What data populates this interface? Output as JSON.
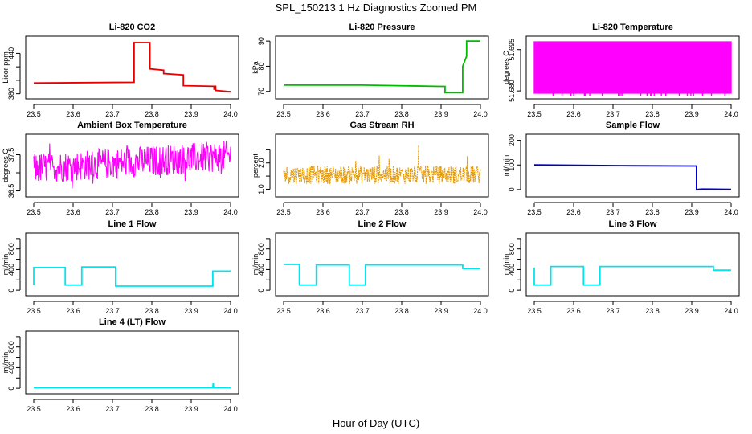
{
  "main_title": "SPL_150213  1 Hz Diagnostics Zoomed PM",
  "xlabel": "Hour of Day (UTC)",
  "chart_data": [
    {
      "type": "line",
      "title": "Li-820 CO2",
      "ylabel": "Licor ppm",
      "color": "#e60000",
      "xlim": [
        23.5,
        24.0
      ],
      "ylim": [
        376,
        462
      ],
      "yticks": [
        380,
        400,
        420,
        440
      ],
      "ytick_labels": [
        "380",
        "",
        "",
        "440"
      ],
      "x": [
        23.5,
        23.755,
        23.755,
        23.795,
        23.795,
        23.83,
        23.83,
        23.88,
        23.88,
        23.958,
        23.958,
        23.962,
        23.962,
        24.0
      ],
      "y": [
        396,
        397,
        456,
        456,
        417,
        415,
        410,
        408,
        392,
        391,
        386,
        392,
        385,
        383
      ]
    },
    {
      "type": "line",
      "title": "Li-820 Pressure",
      "ylabel": "kPa",
      "color": "#00bb00",
      "xlim": [
        23.5,
        24.0
      ],
      "ylim": [
        68,
        91
      ],
      "yticks": [
        70,
        80,
        90
      ],
      "ytick_labels": [
        "70",
        "80",
        "90"
      ],
      "x": [
        23.5,
        23.7,
        23.9,
        23.91,
        23.91,
        23.955,
        23.955,
        23.965,
        23.965,
        24.0
      ],
      "y": [
        72.5,
        72.5,
        72.0,
        72.0,
        69.5,
        69.5,
        80,
        84,
        90,
        90
      ]
    },
    {
      "type": "line",
      "title": "Li-820 Temperature",
      "ylabel": "degrees C",
      "color": "#ff00ff",
      "xlim": [
        23.5,
        24.0
      ],
      "ylim": [
        51.678,
        51.699
      ],
      "yticks": [
        51.68,
        51.695
      ],
      "ytick_labels": [
        "51.680",
        "51.695"
      ],
      "x": [
        23.5,
        24.0
      ],
      "y": [
        51.679,
        51.698
      ]
    },
    {
      "type": "line",
      "title": "Ambient Box Temperature",
      "ylabel": "degrees C",
      "color": "#ff00ff",
      "xlim": [
        23.5,
        24.0
      ],
      "ylim": [
        36.4,
        38.0
      ],
      "yticks": [
        36.5,
        37.0,
        37.5
      ],
      "ytick_labels": [
        "36.5",
        "",
        "37.5"
      ],
      "x": [
        23.5,
        24.0
      ],
      "y": [
        36.6,
        37.8
      ]
    },
    {
      "type": "line",
      "title": "Gas Stream RH",
      "ylabel": "percent",
      "color": "#e69900",
      "xlim": [
        23.5,
        24.0
      ],
      "ylim": [
        0.8,
        3.0
      ],
      "yticks": [
        1.0,
        1.5,
        2.0,
        2.5
      ],
      "ytick_labels": [
        "1.0",
        "",
        "2.0",
        ""
      ],
      "x": [
        23.5,
        24.0
      ],
      "y": [
        1.1,
        2.0
      ]
    },
    {
      "type": "line",
      "title": "Sample Flow",
      "ylabel": "ml/min",
      "color": "#0000cc",
      "xlim": [
        23.5,
        24.0
      ],
      "ylim": [
        -20,
        215
      ],
      "yticks": [
        0,
        100,
        200
      ],
      "ytick_labels": [
        "0",
        "100",
        "200"
      ],
      "x": [
        23.5,
        23.75,
        23.9,
        23.912,
        23.912,
        23.925,
        24.0
      ],
      "y": [
        100,
        97,
        96,
        96,
        0,
        2,
        1
      ]
    },
    {
      "type": "line",
      "title": "Line 1 Flow",
      "ylabel": "ml/min",
      "color": "#00e5ee",
      "xlim": [
        23.5,
        24.0
      ],
      "ylim": [
        -60,
        1060
      ],
      "yticks": [
        0,
        200,
        400,
        600,
        800,
        1000
      ],
      "ytick_labels": [
        "0",
        "",
        "400",
        "",
        "800",
        ""
      ],
      "x": [
        23.5,
        23.5,
        23.58,
        23.58,
        23.622,
        23.622,
        23.708,
        23.708,
        23.955,
        23.955,
        24.0
      ],
      "y": [
        100,
        440,
        440,
        100,
        100,
        450,
        450,
        80,
        80,
        370,
        370
      ]
    },
    {
      "type": "line",
      "title": "Line 2 Flow",
      "ylabel": "ml/min",
      "color": "#00e5ee",
      "xlim": [
        23.5,
        24.0
      ],
      "ylim": [
        -60,
        1060
      ],
      "yticks": [
        0,
        200,
        400,
        600,
        800,
        1000
      ],
      "ytick_labels": [
        "0",
        "",
        "400",
        "",
        "800",
        ""
      ],
      "x": [
        23.5,
        23.54,
        23.54,
        23.583,
        23.583,
        23.667,
        23.667,
        23.708,
        23.708,
        23.955,
        23.955,
        24.0
      ],
      "y": [
        500,
        500,
        100,
        100,
        490,
        490,
        100,
        100,
        490,
        490,
        420,
        420
      ]
    },
    {
      "type": "line",
      "title": "Line 3 Flow",
      "ylabel": "ml/min",
      "color": "#00e5ee",
      "xlim": [
        23.5,
        24.0
      ],
      "ylim": [
        -60,
        1060
      ],
      "yticks": [
        0,
        200,
        400,
        600,
        800,
        1000
      ],
      "ytick_labels": [
        "0",
        "",
        "400",
        "",
        "800",
        ""
      ],
      "x": [
        23.5,
        23.5,
        23.542,
        23.542,
        23.625,
        23.625,
        23.667,
        23.667,
        23.955,
        23.955,
        24.0
      ],
      "y": [
        440,
        100,
        100,
        460,
        460,
        100,
        100,
        460,
        460,
        390,
        390
      ]
    },
    {
      "type": "line",
      "title": "Line 4 (LT) Flow",
      "ylabel": "ml/min",
      "color": "#00e5ee",
      "xlim": [
        23.5,
        24.0
      ],
      "ylim": [
        -60,
        1060
      ],
      "yticks": [
        0,
        200,
        400,
        600,
        800,
        1000
      ],
      "ytick_labels": [
        "0",
        "",
        "400",
        "",
        "800",
        ""
      ],
      "x": [
        23.5,
        23.955,
        23.956,
        23.957,
        23.958,
        24.0
      ],
      "y": [
        10,
        10,
        110,
        10,
        10,
        10
      ]
    }
  ]
}
